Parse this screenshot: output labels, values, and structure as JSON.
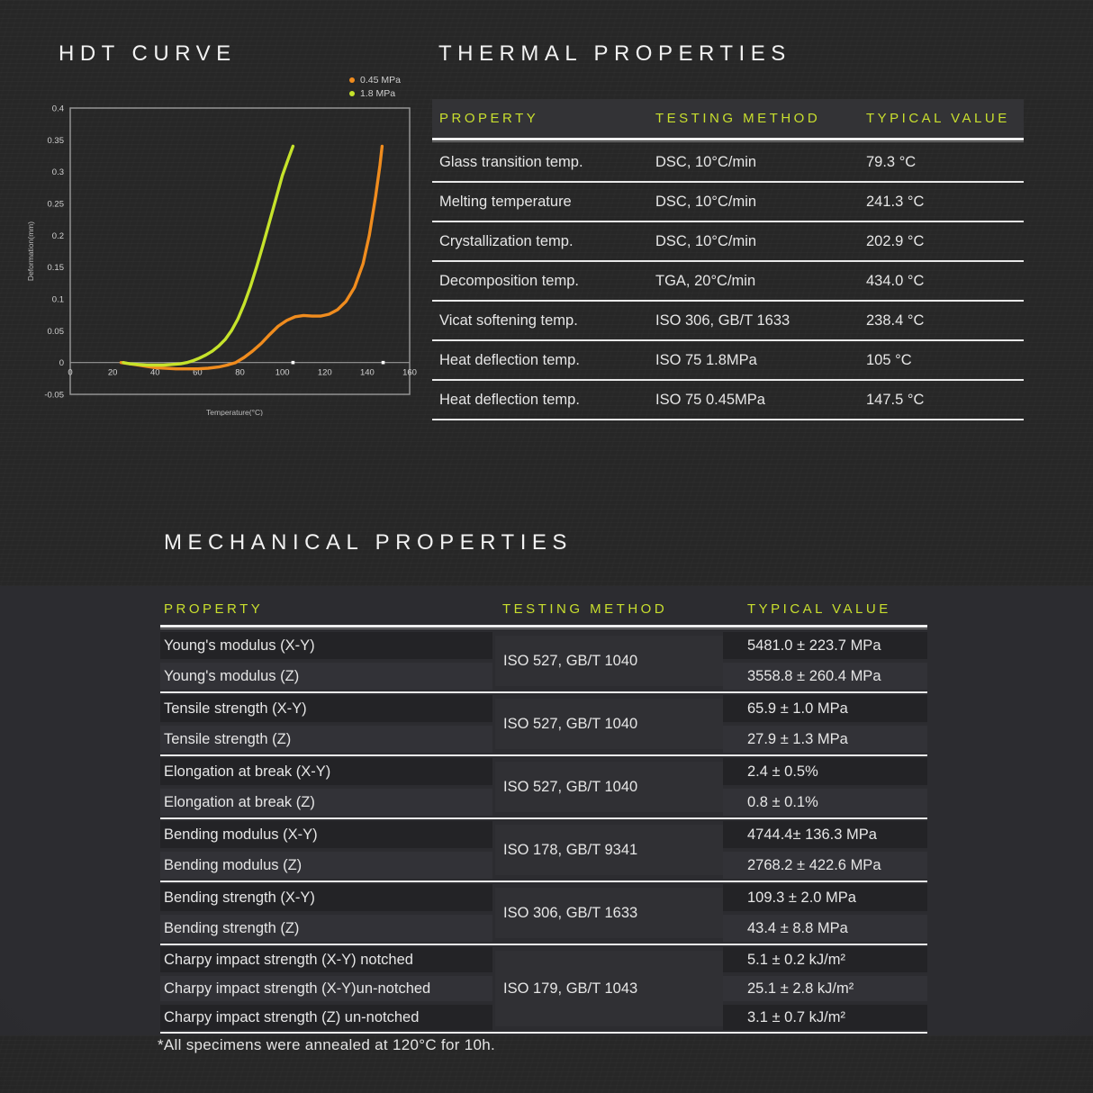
{
  "chart_data": {
    "type": "line",
    "title": "HDT CURVE",
    "xlabel": "Temperature(°C)",
    "ylabel": "Deformation(mm)",
    "xlim": [
      0,
      160
    ],
    "ylim": [
      -0.05,
      0.4
    ],
    "xticks": [
      0,
      20,
      40,
      60,
      80,
      100,
      120,
      140,
      160
    ],
    "yticks": [
      "0.4",
      "0.35",
      "0.3",
      "0.25",
      "0.2",
      "0.15",
      "0.1",
      "0.05",
      "0",
      "-0.05"
    ],
    "grid": false,
    "legend_position": "top-right",
    "series": [
      {
        "name": "0.45 MPa",
        "color": "#f08c1e",
        "points": [
          [
            24,
            0
          ],
          [
            28,
            -0.002
          ],
          [
            32,
            -0.004
          ],
          [
            36,
            -0.006
          ],
          [
            40,
            -0.008
          ],
          [
            45,
            -0.009
          ],
          [
            50,
            -0.01
          ],
          [
            55,
            -0.01
          ],
          [
            60,
            -0.01
          ],
          [
            65,
            -0.009
          ],
          [
            70,
            -0.007
          ],
          [
            74,
            -0.004
          ],
          [
            78,
            0
          ],
          [
            82,
            0.008
          ],
          [
            86,
            0.018
          ],
          [
            90,
            0.03
          ],
          [
            94,
            0.044
          ],
          [
            98,
            0.057
          ],
          [
            102,
            0.066
          ],
          [
            106,
            0.072
          ],
          [
            110,
            0.074
          ],
          [
            114,
            0.073
          ],
          [
            118,
            0.073
          ],
          [
            122,
            0.076
          ],
          [
            126,
            0.083
          ],
          [
            130,
            0.096
          ],
          [
            134,
            0.118
          ],
          [
            138,
            0.155
          ],
          [
            141,
            0.2
          ],
          [
            144,
            0.262
          ],
          [
            146,
            0.31
          ],
          [
            147,
            0.34
          ]
        ]
      },
      {
        "name": "1.8 MPa",
        "color": "#c6e32b",
        "points": [
          [
            25,
            0
          ],
          [
            28,
            -0.002
          ],
          [
            32,
            -0.003
          ],
          [
            36,
            -0.004
          ],
          [
            40,
            -0.004
          ],
          [
            44,
            -0.004
          ],
          [
            48,
            -0.003
          ],
          [
            52,
            -0.002
          ],
          [
            55,
            0
          ],
          [
            58,
            0.003
          ],
          [
            61,
            0.007
          ],
          [
            64,
            0.012
          ],
          [
            67,
            0.018
          ],
          [
            70,
            0.026
          ],
          [
            73,
            0.036
          ],
          [
            76,
            0.05
          ],
          [
            79,
            0.068
          ],
          [
            82,
            0.092
          ],
          [
            85,
            0.12
          ],
          [
            88,
            0.152
          ],
          [
            91,
            0.186
          ],
          [
            94,
            0.222
          ],
          [
            97,
            0.258
          ],
          [
            100,
            0.294
          ],
          [
            103,
            0.322
          ],
          [
            105,
            0.34
          ]
        ]
      }
    ],
    "markers": [
      [
        105,
        0
      ],
      [
        147.5,
        0
      ]
    ]
  },
  "thermal": {
    "title": "THERMAL PROPERTIES",
    "headers": [
      "PROPERTY",
      "TESTING METHOD",
      "TYPICAL VALUE"
    ],
    "rows": [
      {
        "property": "Glass transition temp.",
        "method": "DSC, 10°C/min",
        "value": "79.3 °C"
      },
      {
        "property": "Melting temperature",
        "method": "DSC, 10°C/min",
        "value": "241.3 °C"
      },
      {
        "property": "Crystallization temp.",
        "method": "DSC, 10°C/min",
        "value": "202.9 °C"
      },
      {
        "property": "Decomposition temp.",
        "method": "TGA, 20°C/min",
        "value": "434.0 °C"
      },
      {
        "property": "Vicat softening temp.",
        "method": "ISO 306, GB/T 1633",
        "value": "238.4 °C"
      },
      {
        "property": "Heat deflection temp.",
        "method": "ISO 75 1.8MPa",
        "value": "105 °C"
      },
      {
        "property": "Heat deflection temp.",
        "method": "ISO 75 0.45MPa",
        "value": "147.5 °C"
      }
    ]
  },
  "mechanical": {
    "title": "MECHANICAL PROPERTIES",
    "headers": [
      "PROPERTY",
      "TESTING METHOD",
      "TYPICAL VALUE"
    ],
    "groups": [
      {
        "method": "ISO 527, GB/T 1040",
        "rows": [
          {
            "property": "Young's modulus (X-Y)",
            "value": "5481.0 ± 223.7 MPa"
          },
          {
            "property": "Young's modulus (Z)",
            "value": "3558.8 ± 260.4 MPa"
          }
        ]
      },
      {
        "method": "ISO 527, GB/T 1040",
        "rows": [
          {
            "property": "Tensile strength (X-Y)",
            "value": "65.9 ± 1.0 MPa"
          },
          {
            "property": "Tensile strength (Z)",
            "value": "27.9 ± 1.3 MPa"
          }
        ]
      },
      {
        "method": "ISO 527, GB/T 1040",
        "rows": [
          {
            "property": "Elongation at break (X-Y)",
            "value": "2.4 ±  0.5%"
          },
          {
            "property": "Elongation at break (Z)",
            "value": "0.8 ±  0.1%"
          }
        ]
      },
      {
        "method": "ISO 178, GB/T 9341",
        "rows": [
          {
            "property": "Bending modulus (X-Y)",
            "value": "4744.4± 136.3 MPa"
          },
          {
            "property": "Bending modulus (Z)",
            "value": "2768.2 ± 422.6 MPa"
          }
        ]
      },
      {
        "method": "ISO 306, GB/T 1633",
        "rows": [
          {
            "property": "Bending strength (X-Y)",
            "value": "109.3 ± 2.0 MPa"
          },
          {
            "property": "Bending strength (Z)",
            "value": "43.4 ± 8.8 MPa"
          }
        ]
      },
      {
        "method": "ISO 179,  GB/T 1043",
        "rows": [
          {
            "property": "Charpy impact strength (X-Y) notched",
            "value": "5.1  ± 0.2 kJ/m²"
          },
          {
            "property": "Charpy impact strength (X-Y)un-notched",
            "value": "25.1  ± 2.8 kJ/m²"
          },
          {
            "property": "Charpy impact strength (Z) un-notched",
            "value": "3.1  ± 0.7 kJ/m²"
          }
        ]
      }
    ],
    "footnote": "*All specimens were annealed at 120°C for 10h."
  },
  "colors": {
    "accent_green": "#c9df2e",
    "curve_orange": "#f08c1e",
    "curve_green": "#c6e32b",
    "background": "#272727",
    "band_background": "#2c2c30"
  }
}
